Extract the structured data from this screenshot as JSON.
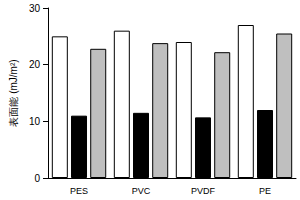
{
  "chart_data": {
    "type": "bar",
    "y_label": "表面能 (mJ/m²)",
    "categories": [
      "PES",
      "PVC",
      "PVDF",
      "PE"
    ],
    "series": [
      {
        "color": "#ffffff",
        "values": [
          25,
          26,
          24,
          27
        ]
      },
      {
        "color": "#000000",
        "values": [
          11,
          11.5,
          10.7,
          12
        ]
      },
      {
        "color": "#bfbfbf",
        "values": [
          22.8,
          23.8,
          22.2,
          25.5
        ]
      }
    ],
    "ylim": [
      0,
      30
    ],
    "yticks": [
      0,
      10,
      20,
      30
    ],
    "grid": false
  }
}
